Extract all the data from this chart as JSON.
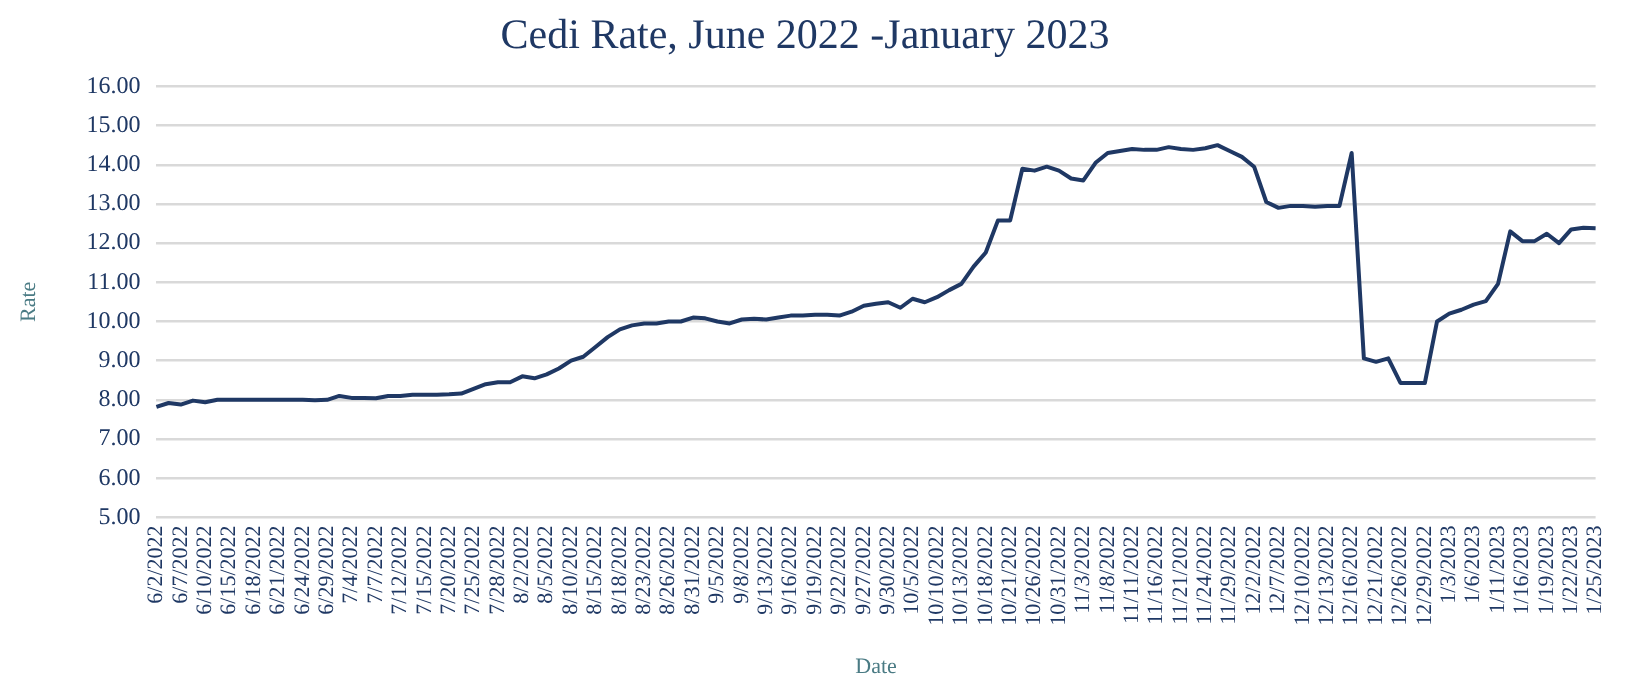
{
  "chart_data": {
    "type": "line",
    "title": "Cedi Rate, June 2022 -January 2023",
    "xlabel": "Date",
    "ylabel": "Rate",
    "categories": [
      "6/2/2022",
      null,
      "6/7/2022",
      null,
      "6/10/2022",
      null,
      "6/15/2022",
      null,
      "6/18/2022",
      null,
      "6/21/2022",
      null,
      "6/24/2022",
      null,
      "6/29/2022",
      null,
      "7/4/2022",
      null,
      "7/7/2022",
      null,
      "7/12/2022",
      null,
      "7/15/2022",
      null,
      "7/20/2022",
      null,
      "7/25/2022",
      null,
      "7/28/2022",
      null,
      "8/2/2022",
      null,
      "8/5/2022",
      null,
      "8/10/2022",
      null,
      "8/15/2022",
      null,
      "8/18/2022",
      null,
      "8/23/2022",
      null,
      "8/26/2022",
      null,
      "8/31/2022",
      null,
      "9/5/2022",
      null,
      "9/8/2022",
      null,
      "9/13/2022",
      null,
      "9/16/2022",
      null,
      "9/19/2022",
      null,
      "9/22/2022",
      null,
      "9/27/2022",
      null,
      "9/30/2022",
      null,
      "10/5/2022",
      null,
      "10/10/2022",
      null,
      "10/13/2022",
      null,
      "10/18/2022",
      null,
      "10/21/2022",
      null,
      "10/26/2022",
      null,
      "10/31/2022",
      null,
      "11/3/2022",
      null,
      "11/8/2022",
      null,
      "11/11/2022",
      null,
      "11/16/2022",
      null,
      "11/21/2022",
      null,
      "11/24/2022",
      null,
      "11/29/2022",
      null,
      "12/2/2022",
      null,
      "12/7/2022",
      null,
      "12/10/2022",
      null,
      "12/13/2022",
      null,
      "12/16/2022",
      null,
      "12/21/2022",
      null,
      "12/26/2022",
      null,
      "12/29/2022",
      null,
      "1/3/2023",
      null,
      "1/6/2023",
      null,
      "1/11/2023",
      null,
      "1/16/2023",
      null,
      "1/19/2023",
      null,
      "1/22/2023",
      null,
      "1/25/2023"
    ],
    "series": [
      {
        "color": "#1f3864",
        "values": [
          7.82,
          7.92,
          7.88,
          7.98,
          7.94,
          8.0,
          8.0,
          8.0,
          8.0,
          8.0,
          8.0,
          8.0,
          8.0,
          7.99,
          8.0,
          8.1,
          8.05,
          8.05,
          8.04,
          8.1,
          8.1,
          8.13,
          8.13,
          8.13,
          8.14,
          8.16,
          8.28,
          8.4,
          8.45,
          8.45,
          8.6,
          8.55,
          8.65,
          8.8,
          9.0,
          9.1,
          9.35,
          9.6,
          9.8,
          9.9,
          9.95,
          9.95,
          10.0,
          10.0,
          10.1,
          10.08,
          10.0,
          9.95,
          10.05,
          10.07,
          10.05,
          10.1,
          10.15,
          10.15,
          10.17,
          10.17,
          10.15,
          10.25,
          10.4,
          10.45,
          10.49,
          10.35,
          10.58,
          10.49,
          10.62,
          10.8,
          10.96,
          11.4,
          11.76,
          12.58,
          12.58,
          13.9,
          13.85,
          13.95,
          13.85,
          13.65,
          13.6,
          14.05,
          14.3,
          14.35,
          14.4,
          14.38,
          14.38,
          14.45,
          14.4,
          14.38,
          14.42,
          14.5,
          14.35,
          14.2,
          13.95,
          13.05,
          12.9,
          12.95,
          12.95,
          12.93,
          12.95,
          12.95,
          14.3,
          9.06,
          8.97,
          9.06,
          8.43,
          8.43,
          8.43,
          10.0,
          10.2,
          10.3,
          10.43,
          10.52,
          10.96,
          12.3,
          12.05,
          12.05,
          12.24,
          12.0,
          12.35,
          12.39,
          12.38
        ]
      }
    ],
    "ylim": [
      5,
      16
    ],
    "yticks": [
      {
        "value": 5,
        "label": "5.00"
      },
      {
        "value": 6,
        "label": "6.00"
      },
      {
        "value": 7,
        "label": "7.00"
      },
      {
        "value": 8,
        "label": "8.00"
      },
      {
        "value": 9,
        "label": "9.00"
      },
      {
        "value": 10,
        "label": "10.00"
      },
      {
        "value": 11,
        "label": "11.00"
      },
      {
        "value": 12,
        "label": "12.00"
      },
      {
        "value": 13,
        "label": "13.00"
      },
      {
        "value": 14,
        "label": "14.00"
      },
      {
        "value": 15,
        "label": "15.00"
      },
      {
        "value": 16,
        "label": "16.00"
      }
    ],
    "grid": "y",
    "marker": "none",
    "line_style": "solid"
  }
}
